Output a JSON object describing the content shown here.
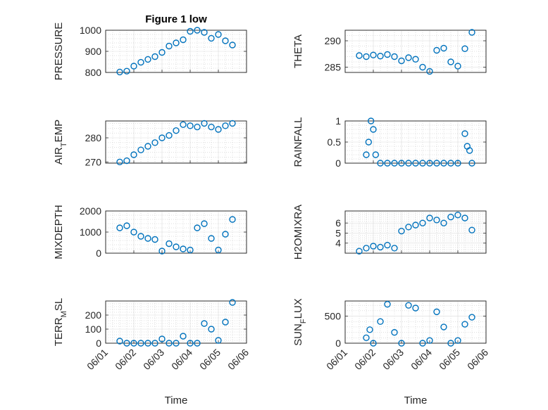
{
  "chart_data": [
    {
      "type": "scatter",
      "title": "Figure 1 low",
      "ylabel": "PRESSURE",
      "xlabel": "",
      "ylim": [
        800,
        1000
      ],
      "yticks": [
        800,
        900,
        1000
      ],
      "ytick_labels": [
        "800",
        "900",
        "1000"
      ],
      "xlim": [
        "06/01",
        "06/06"
      ],
      "grid": true,
      "color": "#0072BD",
      "x": [
        "06/01 12:00",
        "06/01 18:00",
        "06/02 00:00",
        "06/02 06:00",
        "06/02 12:00",
        "06/02 18:00",
        "06/03 00:00",
        "06/03 06:00",
        "06/03 12:00",
        "06/03 18:00",
        "06/04 00:00",
        "06/04 06:00",
        "06/04 12:00",
        "06/04 18:00",
        "06/05 00:00",
        "06/05 06:00",
        "06/05 12:00"
      ],
      "y": [
        802,
        806,
        830,
        848,
        862,
        875,
        895,
        925,
        940,
        955,
        995,
        1000,
        990,
        962,
        980,
        950,
        930
      ]
    },
    {
      "type": "scatter",
      "title": "",
      "ylabel": "THETA",
      "xlabel": "",
      "ylim": [
        284,
        292
      ],
      "yticks": [
        285,
        290
      ],
      "ytick_labels": [
        "285",
        "290"
      ],
      "xlim": [
        "06/01",
        "06/06"
      ],
      "grid": true,
      "color": "#0072BD",
      "x": [
        "06/01 12:00",
        "06/01 18:00",
        "06/02 00:00",
        "06/02 06:00",
        "06/02 12:00",
        "06/02 18:00",
        "06/03 00:00",
        "06/03 06:00",
        "06/03 12:00",
        "06/03 18:00",
        "06/04 00:00",
        "06/04 06:00",
        "06/04 12:00",
        "06/04 18:00",
        "06/05 00:00",
        "06/05 06:00",
        "06/05 12:00"
      ],
      "y": [
        287.2,
        287.0,
        287.3,
        287.1,
        287.4,
        287.0,
        286.2,
        286.8,
        286.5,
        285.0,
        284.2,
        288.2,
        288.6,
        286.0,
        285.2,
        288.5,
        291.6
      ]
    },
    {
      "type": "scatter",
      "title": "",
      "ylabel": "AIR_TEMP",
      "xlabel": "",
      "ylim": [
        269.5,
        287
      ],
      "yticks": [
        270,
        280
      ],
      "ytick_labels": [
        "270",
        "280"
      ],
      "xlim": [
        "06/01",
        "06/06"
      ],
      "grid": true,
      "color": "#0072BD",
      "x": [
        "06/01 12:00",
        "06/01 18:00",
        "06/02 00:00",
        "06/02 06:00",
        "06/02 12:00",
        "06/02 18:00",
        "06/03 00:00",
        "06/03 06:00",
        "06/03 12:00",
        "06/03 18:00",
        "06/04 00:00",
        "06/04 06:00",
        "06/04 12:00",
        "06/04 18:00",
        "06/05 00:00",
        "06/05 06:00",
        "06/05 12:00"
      ],
      "y": [
        270,
        270.5,
        273,
        275,
        276.5,
        278,
        280,
        281,
        283,
        285.5,
        285,
        284.5,
        286,
        284.5,
        283.5,
        285,
        286
      ]
    },
    {
      "type": "scatter",
      "title": "",
      "ylabel": "RAINFALL",
      "xlabel": "",
      "ylim": [
        0,
        1
      ],
      "yticks": [
        0,
        0.5,
        1
      ],
      "ytick_labels": [
        "0",
        "0.5",
        "1"
      ],
      "xlim": [
        "06/01",
        "06/06"
      ],
      "grid": true,
      "color": "#0072BD",
      "x": [
        "06/01 18:00",
        "06/01 20:00",
        "06/01 22:00",
        "06/02 00:00",
        "06/02 02:00",
        "06/02 06:00",
        "06/02 12:00",
        "06/02 18:00",
        "06/03 00:00",
        "06/03 06:00",
        "06/03 12:00",
        "06/03 18:00",
        "06/04 00:00",
        "06/04 06:00",
        "06/04 12:00",
        "06/04 18:00",
        "06/05 00:00",
        "06/05 06:00",
        "06/05 08:00",
        "06/05 10:00",
        "06/05 12:00"
      ],
      "y": [
        0.2,
        0.5,
        1.0,
        0.8,
        0.2,
        0,
        0,
        0,
        0,
        0,
        0,
        0,
        0,
        0,
        0,
        0,
        0,
        0.7,
        0.4,
        0.3,
        0
      ]
    },
    {
      "type": "scatter",
      "title": "",
      "ylabel": "MIXDEPTH",
      "xlabel": "",
      "ylim": [
        0,
        2000
      ],
      "yticks": [
        0,
        1000,
        2000
      ],
      "ytick_labels": [
        "0",
        "1000",
        "2000"
      ],
      "xlim": [
        "06/01",
        "06/06"
      ],
      "grid": true,
      "color": "#0072BD",
      "x": [
        "06/01 12:00",
        "06/01 18:00",
        "06/02 00:00",
        "06/02 06:00",
        "06/02 12:00",
        "06/02 18:00",
        "06/03 00:00",
        "06/03 06:00",
        "06/03 12:00",
        "06/03 18:00",
        "06/04 00:00",
        "06/04 06:00",
        "06/04 12:00",
        "06/04 18:00",
        "06/05 00:00",
        "06/05 06:00",
        "06/05 12:00"
      ],
      "y": [
        1200,
        1300,
        1000,
        800,
        700,
        650,
        100,
        450,
        300,
        200,
        150,
        1200,
        1400,
        700,
        150,
        900,
        1600
      ]
    },
    {
      "type": "scatter",
      "title": "",
      "ylabel": "H2OMIXRA",
      "xlabel": "",
      "ylim": [
        3,
        7.2
      ],
      "yticks": [
        4,
        5,
        6
      ],
      "ytick_labels": [
        "4",
        "5",
        "6"
      ],
      "xlim": [
        "06/01",
        "06/06"
      ],
      "grid": true,
      "color": "#0072BD",
      "x": [
        "06/01 12:00",
        "06/01 18:00",
        "06/02 00:00",
        "06/02 06:00",
        "06/02 12:00",
        "06/02 18:00",
        "06/03 00:00",
        "06/03 06:00",
        "06/03 12:00",
        "06/03 18:00",
        "06/04 00:00",
        "06/04 06:00",
        "06/04 12:00",
        "06/04 18:00",
        "06/05 00:00",
        "06/05 06:00",
        "06/05 12:00"
      ],
      "y": [
        3.2,
        3.5,
        3.7,
        3.6,
        3.8,
        3.5,
        5.2,
        5.6,
        5.8,
        6.0,
        6.5,
        6.3,
        6.0,
        6.6,
        6.8,
        6.5,
        5.3
      ]
    },
    {
      "type": "scatter",
      "title": "",
      "ylabel": "TERR_MSL",
      "xlabel": "Time",
      "ylim": [
        0,
        300
      ],
      "yticks": [
        0,
        100,
        200
      ],
      "ytick_labels": [
        "0",
        "100",
        "200"
      ],
      "xlim": [
        "06/01",
        "06/06"
      ],
      "xticks": [
        "06/01",
        "06/02",
        "06/03",
        "06/04",
        "06/05",
        "06/06"
      ],
      "xtick_labels": [
        "06/01",
        "06/02",
        "06/03",
        "06/04",
        "06/05",
        "06/06"
      ],
      "grid": true,
      "color": "#0072BD",
      "x": [
        "06/01 12:00",
        "06/01 18:00",
        "06/02 00:00",
        "06/02 06:00",
        "06/02 12:00",
        "06/02 18:00",
        "06/03 00:00",
        "06/03 06:00",
        "06/03 12:00",
        "06/03 18:00",
        "06/04 00:00",
        "06/04 06:00",
        "06/04 12:00",
        "06/04 18:00",
        "06/05 00:00",
        "06/05 06:00",
        "06/05 12:00"
      ],
      "y": [
        15,
        0,
        0,
        0,
        0,
        0,
        30,
        0,
        0,
        50,
        0,
        0,
        140,
        100,
        20,
        150,
        290
      ]
    },
    {
      "type": "scatter",
      "title": "",
      "ylabel": "SUN_FLUX",
      "xlabel": "Time",
      "ylim": [
        0,
        780
      ],
      "yticks": [
        0,
        500
      ],
      "ytick_labels": [
        "0",
        "500"
      ],
      "xlim": [
        "06/01",
        "06/06"
      ],
      "xticks": [
        "06/01",
        "06/02",
        "06/03",
        "06/04",
        "06/05",
        "06/06"
      ],
      "xtick_labels": [
        "06/01",
        "06/02",
        "06/03",
        "06/04",
        "06/05",
        "06/06"
      ],
      "grid": true,
      "color": "#0072BD",
      "x": [
        "06/01 18:00",
        "06/01 21:00",
        "06/02 00:00",
        "06/02 06:00",
        "06/02 12:00",
        "06/02 18:00",
        "06/03 00:00",
        "06/03 06:00",
        "06/03 12:00",
        "06/03 18:00",
        "06/04 00:00",
        "06/04 06:00",
        "06/04 12:00",
        "06/04 18:00",
        "06/05 00:00",
        "06/05 06:00",
        "06/05 12:00"
      ],
      "y": [
        100,
        250,
        0,
        400,
        720,
        200,
        0,
        700,
        650,
        0,
        50,
        580,
        300,
        0,
        50,
        350,
        480
      ]
    }
  ]
}
